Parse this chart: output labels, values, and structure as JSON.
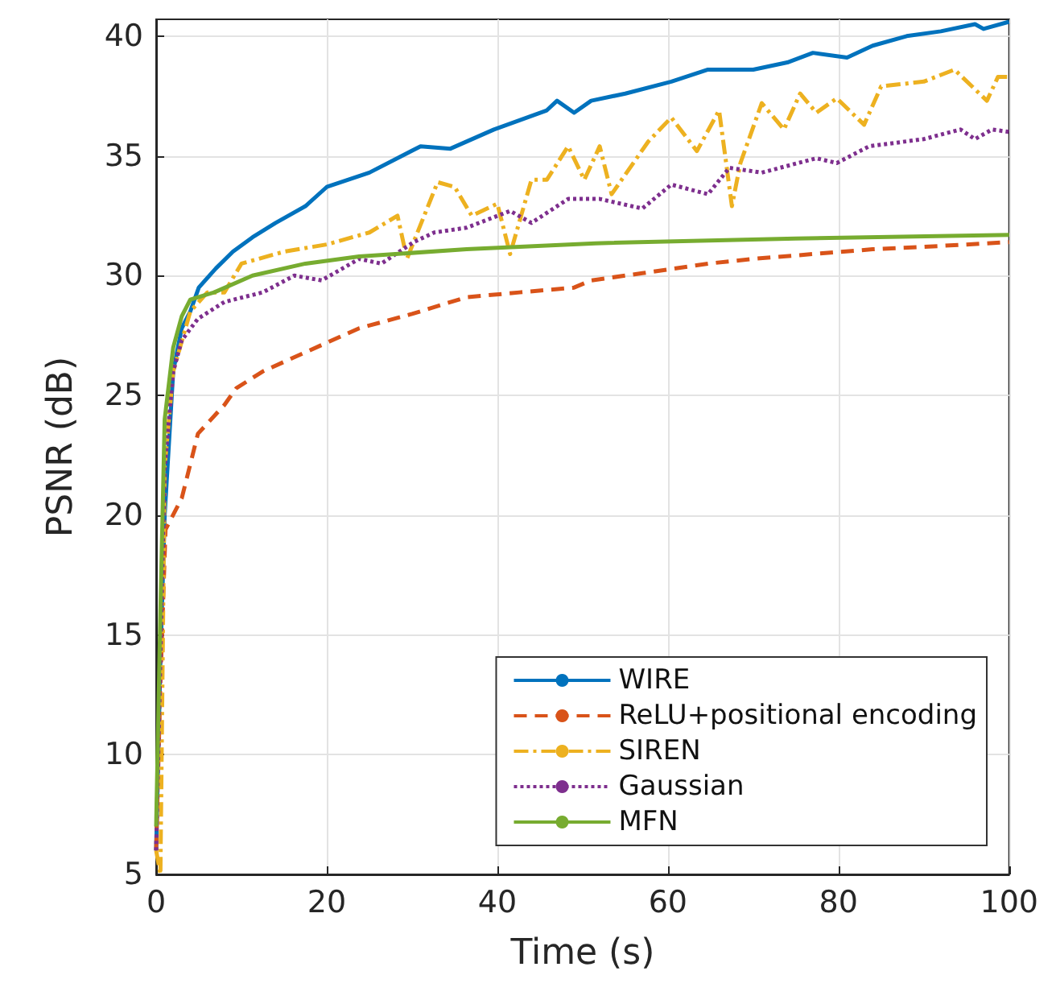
{
  "chart_data": {
    "type": "line",
    "xlabel": "Time (s)",
    "ylabel": "PSNR (dB)",
    "xlim": [
      0,
      100
    ],
    "xticks": [
      0,
      20,
      40,
      60,
      80,
      100
    ],
    "ylim": [
      5,
      40.7
    ],
    "yticks": [
      5,
      10,
      15,
      20,
      25,
      30,
      35,
      40
    ],
    "grid": true,
    "legend": "bottom right",
    "marker": "none",
    "series": [
      {
        "name": "WIRE",
        "color": "#0072bd",
        "line_style": "solid",
        "x": [
          0,
          0.5,
          1,
          2,
          3,
          4,
          5,
          7,
          9,
          11.3,
          14,
          17.5,
          20,
          25,
          31,
          34.5,
          39.6,
          45.8,
          47,
          49,
          51,
          55,
          60.4,
          64.7,
          70,
          74,
          77,
          81,
          84,
          88,
          92,
          96,
          97,
          100
        ],
        "values": [
          6,
          14,
          20,
          26,
          27.8,
          28.5,
          29.5,
          30.3,
          31,
          31.6,
          32.2,
          32.9,
          33.7,
          34.3,
          35.4,
          35.3,
          36.1,
          36.9,
          37.3,
          36.8,
          37.3,
          37.6,
          38.1,
          38.6,
          38.6,
          38.9,
          39.3,
          39.1,
          39.6,
          40,
          40.2,
          40.5,
          40.3,
          40.6
        ]
      },
      {
        "name": "ReLU+positional encoding",
        "color": "#d95319",
        "line_style": "dashed",
        "x": [
          0,
          0.5,
          1.1,
          3,
          4.9,
          8,
          9.4,
          12.5,
          17.5,
          23.8,
          30,
          36.4,
          42.6,
          49,
          51,
          57,
          64.7,
          70,
          77,
          84,
          90,
          95,
          100
        ],
        "values": [
          6,
          13,
          19.4,
          20.7,
          23.4,
          24.6,
          25.3,
          26,
          26.8,
          27.8,
          28.4,
          29.1,
          29.3,
          29.5,
          29.8,
          30.1,
          30.5,
          30.7,
          30.9,
          31.1,
          31.2,
          31.3,
          31.4
        ]
      },
      {
        "name": "SIREN",
        "color": "#edb120",
        "line_style": "dashdot",
        "x": [
          0,
          0.5,
          1,
          2,
          4,
          6,
          8,
          10,
          15,
          20,
          25,
          28.3,
          29.4,
          33,
          35,
          37,
          40,
          41.5,
          44,
          45.8,
          48.3,
          50.2,
          52,
          53.4,
          57.7,
          60.4,
          63.4,
          66,
          67.5,
          68.5,
          71,
          73.6,
          75.5,
          77.4,
          79.8,
          83,
          85,
          90,
          93.6,
          97.4,
          98.7,
          100
        ],
        "values": [
          6,
          5,
          22,
          26,
          28.5,
          29.3,
          29.3,
          30.5,
          31,
          31.3,
          31.8,
          32.5,
          30.7,
          33.9,
          33.7,
          32.5,
          33,
          30.9,
          34,
          34,
          35.4,
          34,
          35.4,
          33.4,
          35.6,
          36.6,
          35.2,
          36.9,
          32.9,
          34.7,
          37.2,
          36.1,
          37.6,
          36.8,
          37.4,
          36.3,
          37.9,
          38.1,
          38.6,
          37.3,
          38.3,
          38.3
        ]
      },
      {
        "name": "Gaussian",
        "color": "#7e2f8e",
        "line_style": "dotted",
        "x": [
          0,
          0.5,
          1,
          2,
          3,
          4.9,
          8,
          12.5,
          16.2,
          19.4,
          23.8,
          26.4,
          30.2,
          32.6,
          36.4,
          41.5,
          44,
          48.3,
          52,
          57,
          60.4,
          64.7,
          67.2,
          71,
          77.4,
          79.8,
          83.6,
          90,
          94.3,
          96,
          98,
          100
        ],
        "values": [
          6,
          14,
          22,
          26,
          27.3,
          28.2,
          28.9,
          29.3,
          30,
          29.8,
          30.7,
          30.5,
          31.4,
          31.8,
          32,
          32.7,
          32.2,
          33.2,
          33.2,
          32.8,
          33.8,
          33.4,
          34.5,
          34.3,
          34.9,
          34.7,
          35.4,
          35.7,
          36.1,
          35.7,
          36.1,
          36
        ]
      },
      {
        "name": "MFN",
        "color": "#77ac30",
        "line_style": "solid",
        "x": [
          0,
          0.5,
          1,
          2,
          3,
          4,
          6.8,
          11.3,
          17.5,
          23.8,
          36.4,
          51.5,
          75,
          100
        ],
        "values": [
          7,
          16,
          24,
          27,
          28.3,
          29,
          29.3,
          30,
          30.5,
          30.8,
          31.1,
          31.35,
          31.55,
          31.7
        ]
      }
    ]
  }
}
